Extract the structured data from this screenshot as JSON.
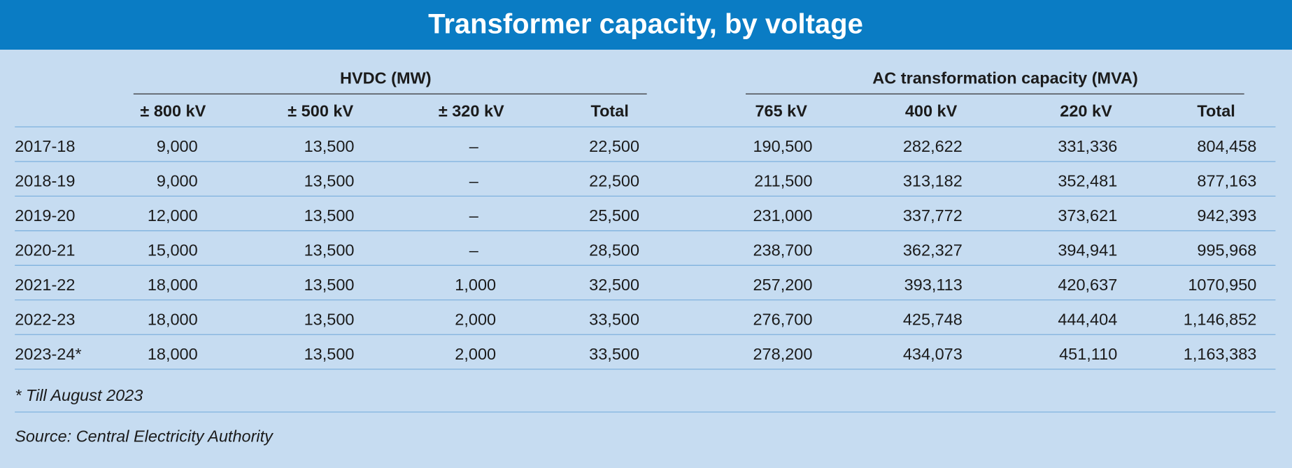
{
  "title": "Transformer capacity, by voltage",
  "table": {
    "group_headers": [
      "HVDC (MW)",
      "AC transformation capacity (MVA)"
    ],
    "columns": [
      "± 800 kV",
      "± 500 kV",
      "± 320 kV",
      "Total",
      "765 kV",
      "400 kV",
      "220 kV",
      "Total"
    ],
    "rows": [
      [
        "2017-18",
        "9,000",
        "13,500",
        "–",
        "22,500",
        "190,500",
        "282,622",
        "331,336",
        "804,458"
      ],
      [
        "2018-19",
        "9,000",
        "13,500",
        "–",
        "22,500",
        "211,500",
        "313,182",
        "352,481",
        "877,163"
      ],
      [
        "2019-20",
        "12,000",
        "13,500",
        "–",
        "25,500",
        "231,000",
        "337,772",
        "373,621",
        "942,393"
      ],
      [
        "2020-21",
        "15,000",
        "13,500",
        "–",
        "28,500",
        "238,700",
        "362,327",
        "394,941",
        "995,968"
      ],
      [
        "2021-22",
        "18,000",
        "13,500",
        "1,000",
        "32,500",
        "257,200",
        "393,113",
        "420,637",
        "1070,950"
      ],
      [
        "2022-23",
        "18,000",
        "13,500",
        "2,000",
        "33,500",
        "276,700",
        "425,748",
        "444,404",
        "1,146,852"
      ],
      [
        "2023-24*",
        "18,000",
        "13,500",
        "2,000",
        "33,500",
        "278,200",
        "434,073",
        "451,110",
        "1,163,383"
      ]
    ]
  },
  "footnote": "* Till August 2023",
  "source": "Source: Central Electricity Authority"
}
